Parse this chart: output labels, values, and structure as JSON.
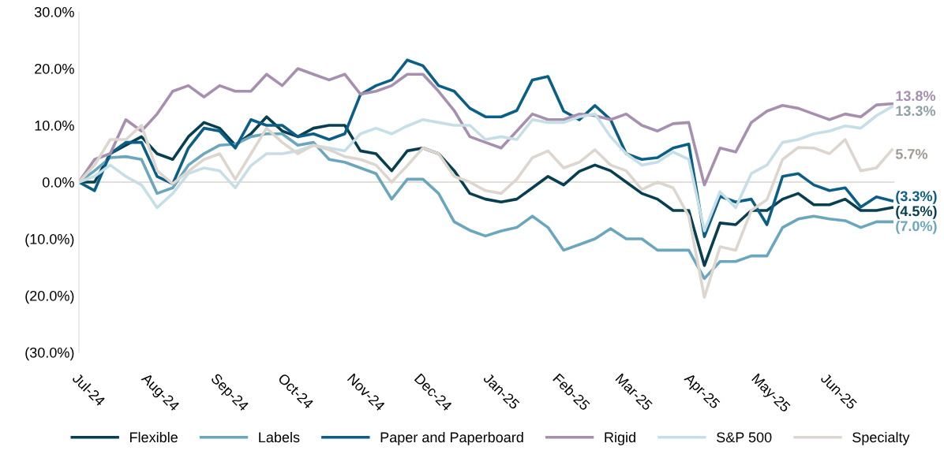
{
  "chart_data": {
    "type": "line",
    "x": [
      "2024-07-01",
      "2024-07-08",
      "2024-07-15",
      "2024-07-22",
      "2024-07-29",
      "2024-08-05",
      "2024-08-12",
      "2024-08-19",
      "2024-08-26",
      "2024-09-02",
      "2024-09-09",
      "2024-09-16",
      "2024-09-23",
      "2024-09-30",
      "2024-10-07",
      "2024-10-14",
      "2024-10-21",
      "2024-10-28",
      "2024-11-04",
      "2024-11-11",
      "2024-11-18",
      "2024-11-25",
      "2024-12-02",
      "2024-12-09",
      "2024-12-16",
      "2024-12-23",
      "2024-12-30",
      "2025-01-06",
      "2025-01-13",
      "2025-01-20",
      "2025-01-27",
      "2025-02-03",
      "2025-02-10",
      "2025-02-17",
      "2025-02-24",
      "2025-03-03",
      "2025-03-10",
      "2025-03-17",
      "2025-03-24",
      "2025-03-31",
      "2025-04-07",
      "2025-04-14",
      "2025-04-21",
      "2025-04-28",
      "2025-05-05",
      "2025-05-12",
      "2025-05-19",
      "2025-05-26",
      "2025-06-02",
      "2025-06-09",
      "2025-06-16",
      "2025-06-23",
      "2025-06-30"
    ],
    "series": [
      {
        "name": "Flexible",
        "color": "#073f50",
        "values": [
          0,
          0,
          5,
          6.5,
          8,
          5,
          4,
          8,
          10.5,
          9.5,
          6.5,
          8.5,
          11.5,
          9,
          8,
          9.5,
          10,
          10,
          5.5,
          5,
          2,
          5.5,
          6,
          5,
          2,
          -2,
          -3,
          -3.5,
          -3,
          -1,
          1,
          -0.5,
          1.9,
          3,
          2,
          0,
          -2,
          -3,
          -5,
          -5,
          -14.7,
          -7.2,
          -7.5,
          -5,
          -5,
          -3,
          -2,
          -4,
          -4,
          -3,
          -5,
          -5,
          -4.5
        ]
      },
      {
        "name": "Labels",
        "color": "#6aa6bd",
        "values": [
          0,
          2,
          4.3,
          4.5,
          4,
          -2,
          -1,
          3,
          5,
          6.5,
          6.7,
          8,
          8.5,
          8.5,
          6.5,
          7,
          4,
          3.5,
          2.5,
          1.5,
          -3,
          0.5,
          0.5,
          -2,
          -7,
          -8.5,
          -9.5,
          -8.6,
          -8,
          -6,
          -8,
          -12,
          -11,
          -10,
          -8.2,
          -10,
          -10,
          -12,
          -12,
          -12,
          -17,
          -14,
          -14,
          -13,
          -13,
          -8,
          -6.5,
          -6,
          -6.5,
          -6.8,
          -8,
          -7,
          -7.0
        ]
      },
      {
        "name": "Paper and Paperboard",
        "color": "#0b5e85",
        "values": [
          0,
          -1.5,
          5,
          7,
          7,
          1,
          -0.3,
          6,
          9.5,
          9,
          6,
          11,
          10,
          10,
          8,
          8.5,
          7.5,
          8.5,
          15.4,
          17,
          18,
          21.5,
          20.5,
          17,
          16,
          13,
          11.5,
          11.5,
          12.6,
          18,
          18.6,
          12.5,
          11,
          13.5,
          11,
          5,
          4,
          4.3,
          6,
          6.7,
          -9.6,
          -2.5,
          -3.5,
          -3,
          -7.5,
          1,
          1.5,
          -0.5,
          -1.5,
          -1,
          -4.4,
          -2.6,
          -3.3
        ]
      },
      {
        "name": "Rigid",
        "color": "#a78fb0",
        "values": [
          0,
          4,
          5,
          11,
          9,
          12,
          16,
          17,
          15,
          17,
          16,
          16,
          19,
          17,
          20,
          19,
          18,
          19,
          15.5,
          16,
          17,
          19,
          19,
          16,
          12.6,
          8,
          7,
          6,
          9,
          12,
          11,
          11,
          12,
          11.7,
          11,
          12,
          10,
          9,
          10.3,
          10.5,
          -0.5,
          6,
          5.3,
          10.5,
          12.5,
          13.5,
          13,
          12,
          11,
          12,
          11.5,
          13.6,
          13.8
        ]
      },
      {
        "name": "S&P 500",
        "color": "#c6dfe7",
        "values": [
          0,
          1,
          3,
          1,
          -0.5,
          -4.5,
          -2,
          1.5,
          2.5,
          2,
          -1,
          2.9,
          5,
          5,
          5.5,
          6.5,
          6,
          5.5,
          8.5,
          9.5,
          8.5,
          9.9,
          11,
          10.5,
          10,
          10,
          7.5,
          8,
          7.5,
          11,
          10.5,
          10.5,
          11.5,
          12,
          8,
          5,
          3,
          3.5,
          5.3,
          4,
          -8.6,
          -1.7,
          -4.5,
          1.5,
          3,
          7,
          7.5,
          8.5,
          9,
          9.9,
          9.5,
          11.7,
          13.3
        ]
      },
      {
        "name": "Specialty",
        "color": "#ddd6cf",
        "values": [
          0,
          3,
          7.5,
          7.5,
          10,
          2,
          -0.3,
          1.9,
          4,
          5,
          0.5,
          5,
          9.5,
          7,
          5,
          6.5,
          5.7,
          4.5,
          4,
          3,
          0,
          2.9,
          6,
          5,
          1,
          0,
          -1.5,
          -2,
          0.5,
          4.3,
          5.5,
          2.5,
          3.5,
          5.7,
          3,
          2,
          -1.3,
          0,
          -1,
          -6,
          -20.3,
          -11.4,
          -12,
          -5,
          -3.1,
          4,
          6.1,
          6,
          5,
          7.5,
          2,
          2.5,
          5.7
        ]
      }
    ],
    "xlim": [
      "2024-07-01",
      "2025-07-01"
    ],
    "xticks": [
      {
        "value": "2024-07-01",
        "label": "Jul-24"
      },
      {
        "value": "2024-08-01",
        "label": "Aug-24"
      },
      {
        "value": "2024-09-01",
        "label": "Sep-24"
      },
      {
        "value": "2024-10-01",
        "label": "Oct-24"
      },
      {
        "value": "2024-11-01",
        "label": "Nov-24"
      },
      {
        "value": "2024-12-01",
        "label": "Dec-24"
      },
      {
        "value": "2025-01-01",
        "label": "Jan-25"
      },
      {
        "value": "2025-02-01",
        "label": "Feb-25"
      },
      {
        "value": "2025-03-01",
        "label": "Mar-25"
      },
      {
        "value": "2025-04-01",
        "label": "Apr-25"
      },
      {
        "value": "2025-05-01",
        "label": "May-25"
      },
      {
        "value": "2025-06-01",
        "label": "Jun-25"
      }
    ],
    "ylim": [
      -30,
      30
    ],
    "yticks": [
      {
        "value": -30,
        "label": "(30.0%)"
      },
      {
        "value": -20,
        "label": "(20.0%)"
      },
      {
        "value": -10,
        "label": "(10.0%)"
      },
      {
        "value": 0,
        "label": "0.0%"
      },
      {
        "value": 10,
        "label": "10.0%"
      },
      {
        "value": 20,
        "label": "20.0%"
      },
      {
        "value": 30,
        "label": "30.0%"
      }
    ],
    "ref_lines": [
      {
        "axis": "y",
        "value": 0,
        "color": "#d9d3cc"
      }
    ],
    "annotations": [
      {
        "text": "13.8%",
        "x": "2025-06-30",
        "y": 13.8
      },
      {
        "text": "13.3%",
        "x": "2025-06-30",
        "y": 13.3
      },
      {
        "text": "5.7%",
        "x": "2025-06-30",
        "y": 5.7
      },
      {
        "text": "(3.3%)",
        "x": "2025-06-30",
        "y": -3.3
      },
      {
        "text": "(4.5%)",
        "x": "2025-06-30",
        "y": -4.5
      },
      {
        "text": "(7.0%)",
        "x": "2025-06-30",
        "y": -7.0
      }
    ],
    "grid": false,
    "legend": "bottom",
    "marker": "none",
    "line_style": "solid"
  }
}
